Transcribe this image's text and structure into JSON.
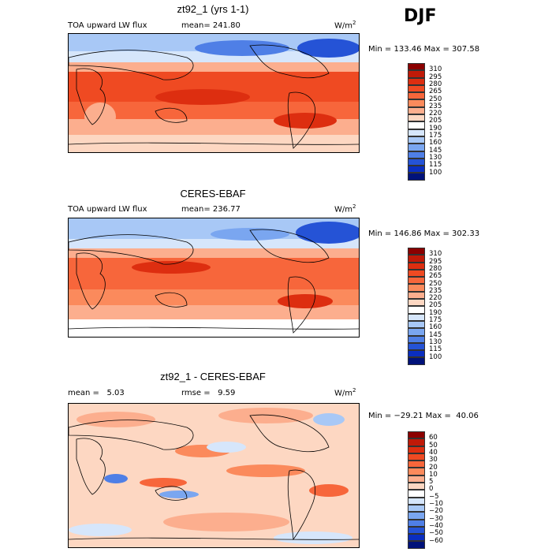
{
  "season": "DJF",
  "panels": [
    {
      "title": "zt92_1 (yrs 1-1)",
      "left_label": "TOA upward LW flux",
      "mid_label": "mean= 241.80",
      "units": "W/m",
      "units_sup": "2",
      "minmax": "Min = 133.46 Max = 307.58",
      "colorbar_labels": [
        "310",
        "295",
        "280",
        "265",
        "250",
        "235",
        "220",
        "205",
        "190",
        "175",
        "160",
        "145",
        "130",
        "115",
        "100"
      ],
      "colorbar_colors": [
        "#8b0000",
        "#c01a08",
        "#dd2e10",
        "#ef4a22",
        "#f7663b",
        "#fb8a5c",
        "#fcae8e",
        "#fdd7c2",
        "#ffffff",
        "#d6e6fb",
        "#a8c8f6",
        "#7aa6f0",
        "#4f7fe6",
        "#2553d6",
        "#0a2ec0",
        "#00127a"
      ]
    },
    {
      "title": "CERES-EBAF",
      "left_label": "TOA upward LW flux",
      "mid_label": "mean= 236.77",
      "units": "W/m",
      "units_sup": "2",
      "minmax": "Min = 146.86 Max = 302.33",
      "colorbar_labels": [
        "310",
        "295",
        "280",
        "265",
        "250",
        "235",
        "220",
        "205",
        "190",
        "175",
        "160",
        "145",
        "130",
        "115",
        "100"
      ],
      "colorbar_colors": [
        "#8b0000",
        "#c01a08",
        "#dd2e10",
        "#ef4a22",
        "#f7663b",
        "#fb8a5c",
        "#fcae8e",
        "#fdd7c2",
        "#ffffff",
        "#d6e6fb",
        "#a8c8f6",
        "#7aa6f0",
        "#4f7fe6",
        "#2553d6",
        "#0a2ec0",
        "#00127a"
      ]
    },
    {
      "title": "zt92_1 - CERES-EBAF",
      "left_label": "mean =   5.03",
      "mid_label": "rmse =   9.59",
      "units": "W/m",
      "units_sup": "2",
      "minmax": "Min = −29.21 Max =  40.06",
      "colorbar_labels": [
        "60",
        "50",
        "40",
        "30",
        "20",
        "10",
        "5",
        "0",
        "−5",
        "−10",
        "−20",
        "−30",
        "−40",
        "−50",
        "−60"
      ],
      "colorbar_colors": [
        "#8b0000",
        "#c01a08",
        "#dd2e10",
        "#ef4a22",
        "#f7663b",
        "#fb8a5c",
        "#fcae8e",
        "#fdd7c2",
        "#ffffff",
        "#d6e6fb",
        "#a8c8f6",
        "#7aa6f0",
        "#4f7fe6",
        "#2553d6",
        "#0a2ec0",
        "#00127a"
      ]
    }
  ]
}
